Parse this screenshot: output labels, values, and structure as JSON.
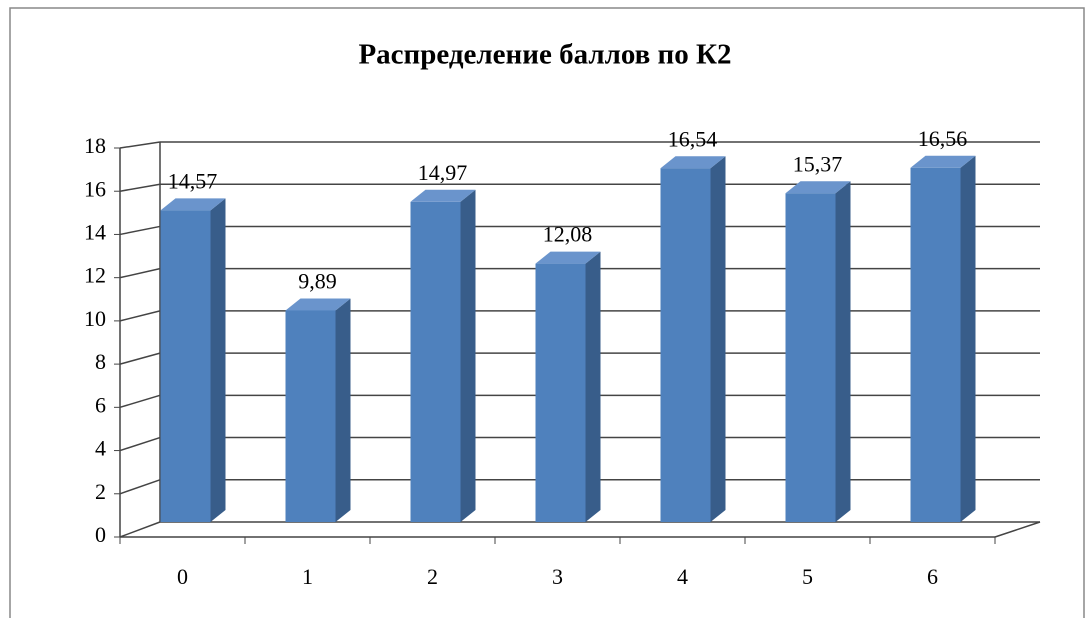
{
  "chart_data": {
    "type": "bar3d",
    "title": "Распределение баллов по К2",
    "categories": [
      "0",
      "1",
      "2",
      "3",
      "4",
      "5",
      "6"
    ],
    "values": [
      14.57,
      9.89,
      14.97,
      12.08,
      16.54,
      15.37,
      16.56
    ],
    "value_labels": [
      "14,57",
      "9,89",
      "14,97",
      "12,08",
      "16,54",
      "15,37",
      "16,56"
    ],
    "color": "#4f81bd",
    "ylim": [
      0,
      18
    ],
    "yticks": [
      0,
      2,
      4,
      6,
      8,
      10,
      12,
      14,
      16,
      18
    ],
    "grid": true
  }
}
